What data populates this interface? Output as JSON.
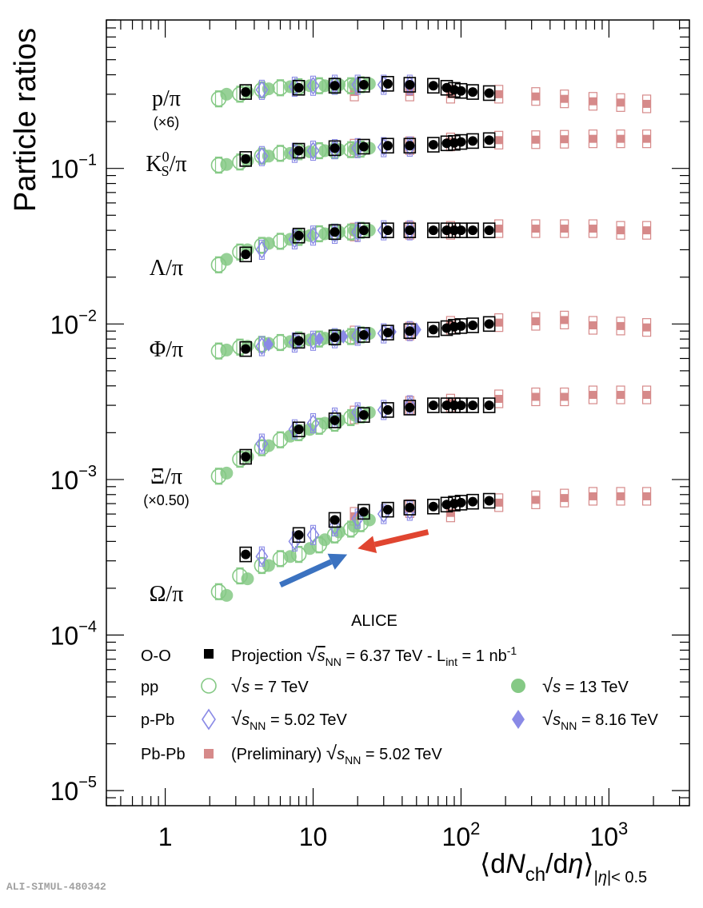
{
  "chart_data": {
    "type": "scatter",
    "title": "ALICE",
    "ylabel": "Particle ratios",
    "xlabel": "⟨dN_ch/dη⟩_|η|<0.5",
    "xscale": "log",
    "yscale": "log",
    "xlim": [
      0.4,
      3500
    ],
    "ylim": [
      8e-06,
      0.9
    ],
    "x_ticks": [
      {
        "label": "1",
        "value": 1
      },
      {
        "label": "10",
        "value": 10
      },
      {
        "label": "10^2",
        "value": 100
      },
      {
        "label": "10^3",
        "value": 1000
      }
    ],
    "y_ticks": [
      {
        "label": "10^-5",
        "value": 1e-05
      },
      {
        "label": "10^-4",
        "value": 0.0001
      },
      {
        "label": "10^-3",
        "value": 0.001
      },
      {
        "label": "10^-2",
        "value": 0.01
      },
      {
        "label": "10^-1",
        "value": 0.1
      }
    ],
    "ratio_labels": [
      {
        "name": "p/π",
        "scale": "(×6)",
        "y": 0.3
      },
      {
        "name": "K0S/π",
        "y": 0.105
      },
      {
        "name": "Λ/π",
        "y": 0.024
      },
      {
        "name": "Φ/π",
        "y": 0.0066
      },
      {
        "name": "Ξ/π",
        "scale": "(×0.50)",
        "y": 0.00092
      },
      {
        "name": "Ω/π",
        "y": 0.000185
      }
    ],
    "legend": {
      "placement": "bottom",
      "systems": [
        "O-O",
        "pp",
        "p-Pb",
        "Pb-Pb"
      ],
      "entries": [
        {
          "system": "O-O",
          "marker": "filled-square",
          "color": "#000000",
          "label": "Projection √s_NN = 6.37 TeV  -  L_int = 1 nb^-1"
        },
        {
          "system": "pp",
          "marker": "open-circle",
          "color": "#85c985",
          "label": "√s = 7 TeV"
        },
        {
          "system": "pp",
          "marker": "filled-circle",
          "color": "#85c985",
          "label": "√s = 13 TeV"
        },
        {
          "system": "p-Pb",
          "marker": "open-diamond",
          "color": "#8a8ae6",
          "label": "√s_NN = 5.02 TeV"
        },
        {
          "system": "p-Pb",
          "marker": "filled-diamond",
          "color": "#8a8ae6",
          "label": "√s_NN = 8.16 TeV"
        },
        {
          "system": "Pb-Pb",
          "marker": "filled-square",
          "color": "#d68a8a",
          "label": "(Preliminary) √s_NN = 5.02 TeV"
        }
      ]
    },
    "series": [
      {
        "name": "O-O Projection 6.37 TeV",
        "marker": "filled-circle-box",
        "color": "#000000",
        "x": [
          3.5,
          8,
          14,
          22,
          32,
          45,
          65,
          80,
          90,
          100,
          120,
          155
        ],
        "ratios": {
          "p/π": [
            0.31,
            0.33,
            0.34,
            0.345,
            0.35,
            0.345,
            0.34,
            0.33,
            0.32,
            0.315,
            0.31,
            0.305
          ],
          "K0S/π": [
            0.115,
            0.13,
            0.135,
            0.138,
            0.14,
            0.14,
            0.142,
            0.145,
            0.146,
            0.148,
            0.15,
            0.152
          ],
          "Λ/π": [
            0.028,
            0.037,
            0.039,
            0.04,
            0.04,
            0.04,
            0.04,
            0.04,
            0.04,
            0.04,
            0.04,
            0.04
          ],
          "Φ/π": [
            0.0069,
            0.0078,
            0.0082,
            0.0085,
            0.0088,
            0.009,
            0.0092,
            0.0094,
            0.0096,
            0.0097,
            0.0098,
            0.01
          ],
          "Ξ/π": [
            0.0014,
            0.0021,
            0.0024,
            0.0026,
            0.0028,
            0.0029,
            0.003,
            0.003,
            0.003,
            0.003,
            0.003,
            0.003
          ],
          "Ω/π": [
            0.00033,
            0.00044,
            0.00055,
            0.00062,
            0.00064,
            0.00066,
            0.00067,
            0.00069,
            0.0007,
            0.00071,
            0.00072,
            0.00073
          ]
        }
      },
      {
        "name": "pp 7 TeV",
        "marker": "open-circle",
        "color": "#85c985",
        "x": [
          2.3,
          3.2,
          4.5,
          6,
          8,
          11,
          14,
          18,
          21
        ],
        "ratios": {
          "p/π": [
            0.28,
            0.3,
            0.32,
            0.33,
            0.335,
            0.34,
            0.34,
            0.34,
            0.345
          ],
          "K0S/π": [
            0.105,
            0.11,
            0.12,
            0.125,
            0.128,
            0.13,
            0.13,
            0.132,
            0.133
          ],
          "Λ/π": [
            0.024,
            0.029,
            0.032,
            0.034,
            0.036,
            0.038,
            0.039,
            0.039,
            0.04
          ],
          "Φ/π": [
            0.0067,
            0.0071,
            0.0074,
            0.0076,
            0.0079,
            0.008,
            0.0082,
            0.0083,
            0.0085
          ],
          "Ξ/π": [
            0.00105,
            0.00135,
            0.0016,
            0.0018,
            0.002,
            0.0022,
            0.0023,
            0.0025,
            0.0026
          ],
          "Ω/π": [
            0.00019,
            0.00024,
            0.00028,
            0.00031,
            0.00033,
            0.00038,
            0.00044,
            0.00048,
            0.00052
          ]
        }
      },
      {
        "name": "pp 13 TeV",
        "marker": "filled-circle",
        "color": "#85c985",
        "x": [
          2.6,
          3.6,
          5,
          7,
          9.5,
          12,
          15,
          19,
          24
        ],
        "ratios": {
          "p/π": [
            0.3,
            0.31,
            0.325,
            0.335,
            0.34,
            0.34,
            0.345,
            0.345,
            0.35
          ],
          "K0S/π": [
            0.106,
            0.112,
            0.12,
            0.125,
            0.128,
            0.13,
            0.132,
            0.133,
            0.135
          ],
          "Λ/π": [
            0.026,
            0.03,
            0.033,
            0.035,
            0.037,
            0.038,
            0.039,
            0.04,
            0.04
          ],
          "Φ/π": [
            0.0068,
            0.0072,
            0.0075,
            0.0077,
            0.0079,
            0.0081,
            0.0083,
            0.0085,
            0.0087
          ],
          "Ξ/π": [
            0.0011,
            0.0014,
            0.00165,
            0.0019,
            0.0021,
            0.0023,
            0.0024,
            0.0026,
            0.0027
          ],
          "Ω/π": [
            0.00018,
            0.00023,
            0.00028,
            0.00032,
            0.00036,
            0.00041,
            0.00046,
            0.0005,
            0.00055
          ]
        }
      },
      {
        "name": "p-Pb 5.02 TeV",
        "marker": "open-diamond",
        "color": "#8a8ae6",
        "x": [
          4.5,
          7.5,
          10,
          14,
          20,
          30,
          45
        ],
        "ratios": {
          "p/π": [
            0.32,
            0.335,
            0.34,
            0.345,
            0.345,
            0.345,
            0.345
          ],
          "K0S/π": [
            0.12,
            0.126,
            0.13,
            0.133,
            0.135,
            0.137,
            0.138
          ],
          "Λ/π": [
            0.03,
            0.035,
            0.037,
            0.038,
            0.039,
            0.04,
            0.04
          ],
          "Φ/π": [
            0.0072,
            0.0076,
            0.0078,
            0.0081,
            0.0084,
            0.0087,
            0.009
          ],
          "Ξ/π": [
            0.0017,
            0.0021,
            0.0023,
            0.0025,
            0.0027,
            0.0028,
            0.003
          ],
          "Ω/π": [
            0.00032,
            0.0004,
            0.00044,
            0.0005,
            0.00056,
            0.0006,
            0.00063
          ]
        }
      },
      {
        "name": "p-Pb 8.16 TeV",
        "marker": "filled-diamond",
        "color": "#8a8ae6",
        "x": [
          5,
          8,
          11,
          16,
          23,
          34,
          50
        ],
        "ratios": {
          "Φ/π": [
            0.0074,
            0.0077,
            0.008,
            0.0083,
            0.0086,
            0.0089,
            0.0092
          ]
        }
      },
      {
        "name": "Pb-Pb 5.02 TeV (Preliminary)",
        "marker": "filled-square",
        "color": "#d68a8a",
        "x": [
          19,
          45,
          85,
          180,
          320,
          500,
          780,
          1200,
          1800
        ],
        "ratios": {
          "p/π": [
            0.31,
            0.31,
            0.3,
            0.3,
            0.29,
            0.28,
            0.27,
            0.265,
            0.26
          ],
          "K0S/π": [
            0.135,
            0.14,
            0.148,
            0.152,
            0.153,
            0.154,
            0.155,
            0.155,
            0.155
          ],
          "Λ/π": [
            0.039,
            0.04,
            0.04,
            0.041,
            0.041,
            0.041,
            0.041,
            0.04,
            0.04
          ],
          "Φ/π": [
            0.0085,
            0.009,
            0.0098,
            0.0102,
            0.0104,
            0.0106,
            0.0098,
            0.0097,
            0.0095
          ],
          "Ξ/π": [
            0.0026,
            0.003,
            0.0031,
            0.0033,
            0.0034,
            0.0034,
            0.0035,
            0.0035,
            0.0035
          ],
          "Ω/π": [
            0.00058,
            0.00065,
            0.00061,
            0.00071,
            0.00074,
            0.00076,
            0.00078,
            0.00078,
            0.00078
          ]
        }
      }
    ],
    "arrows": [
      {
        "color": "#3b72c0",
        "from": {
          "x": 6,
          "y": 0.00021
        },
        "to": {
          "x": 17,
          "y": 0.00033
        }
      },
      {
        "color": "#e04530",
        "from": {
          "x": 60,
          "y": 0.00046
        },
        "to": {
          "x": 20,
          "y": 0.00036
        }
      }
    ],
    "watermark": "ALI-SIMUL-480342"
  }
}
